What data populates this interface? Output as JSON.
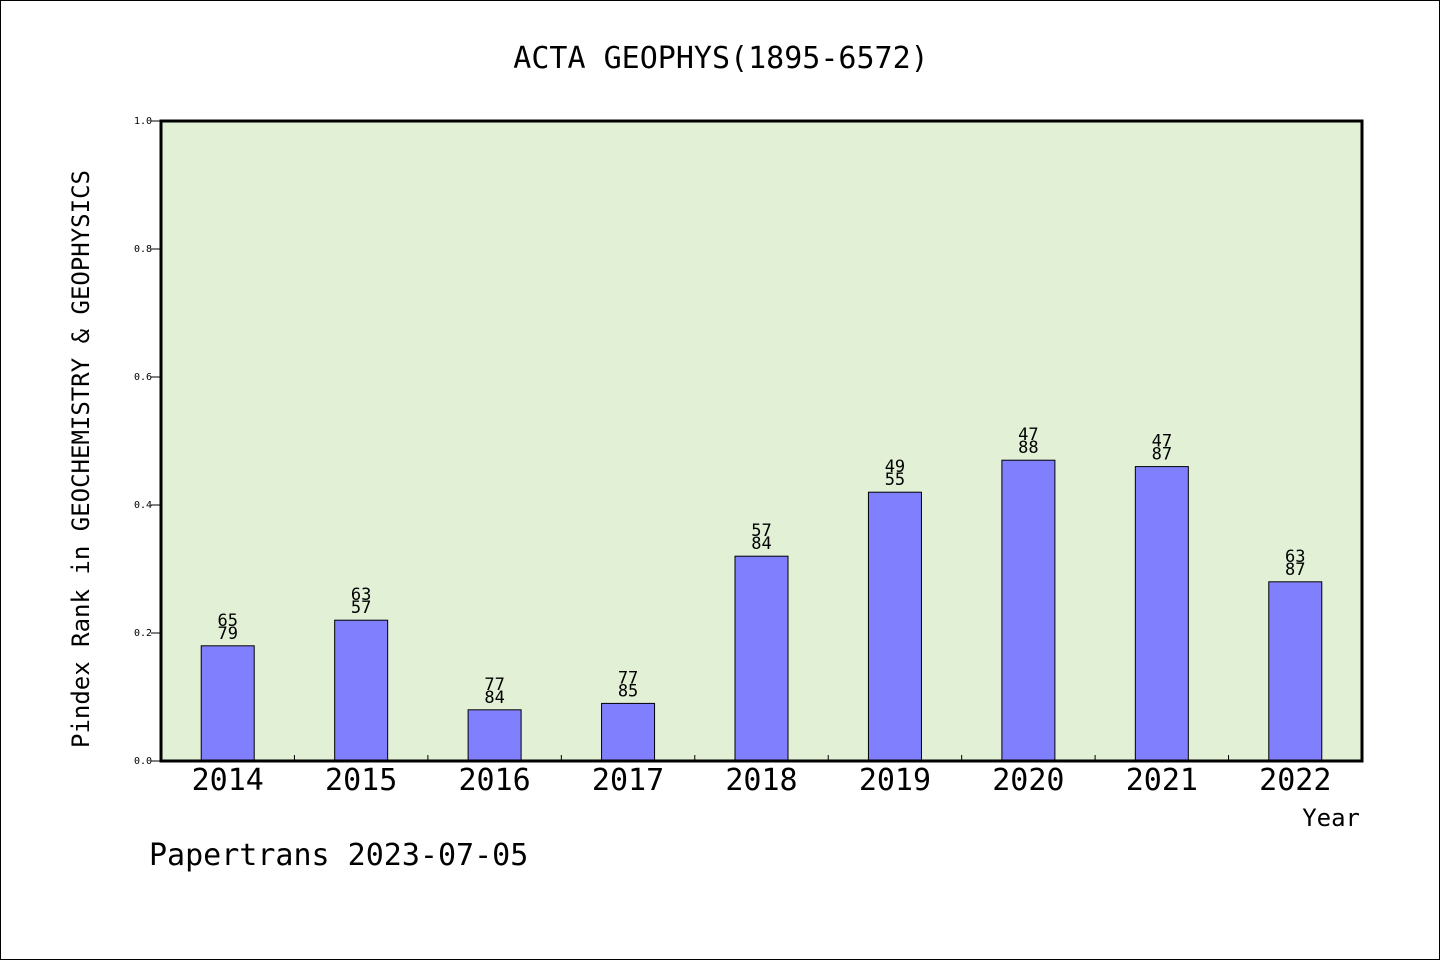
{
  "chart_data": {
    "type": "bar",
    "title": "ACTA GEOPHYS(1895-6572)",
    "xlabel": "Year",
    "ylabel": "Pindex Rank in GEOCHEMISTRY & GEOPHYSICS",
    "categories": [
      "2014",
      "2015",
      "2016",
      "2017",
      "2018",
      "2019",
      "2020",
      "2021",
      "2022"
    ],
    "values": [
      0.18,
      0.22,
      0.08,
      0.09,
      0.32,
      0.42,
      0.47,
      0.46,
      0.28
    ],
    "bar_labels": [
      [
        "65",
        "79"
      ],
      [
        "63",
        "57"
      ],
      [
        "77",
        "84"
      ],
      [
        "77",
        "85"
      ],
      [
        "57",
        "84"
      ],
      [
        "49",
        "55"
      ],
      [
        "47",
        "88"
      ],
      [
        "47",
        "87"
      ],
      [
        "63",
        "87"
      ]
    ],
    "ylim": [
      0,
      1.0
    ],
    "yticks": [
      "0.0",
      "0.2",
      "0.4",
      "0.6",
      "0.8",
      "1.0"
    ],
    "grid": false,
    "colors": {
      "plot_background": "#e2f0d6",
      "bar_fill": "#8080ff",
      "bar_edge": "#000000"
    }
  },
  "footer": "Papertrans 2023-07-05"
}
